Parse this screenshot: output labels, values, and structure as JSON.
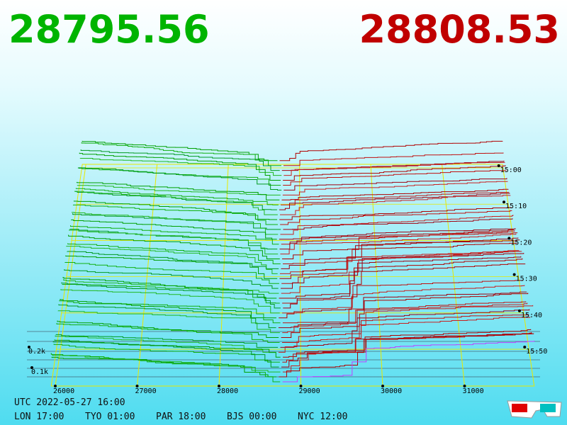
{
  "header": {
    "bid": "28795.56",
    "ask": "28808.53"
  },
  "price_axis": [
    "26000",
    "27000",
    "28000",
    "29000",
    "30000",
    "31000"
  ],
  "time_axis": [
    "15:00",
    "15:10",
    "15:20",
    "15:30",
    "15:40",
    "15:50"
  ],
  "volume_axis": [
    "0.2k",
    "0.1k"
  ],
  "clock": {
    "utc": "UTC 2022-05-27 16:00",
    "cities": [
      "LON 17:00",
      "TYO 01:00",
      "PAR 18:00",
      "BJS 00:00",
      "NYC 12:00"
    ]
  }
}
